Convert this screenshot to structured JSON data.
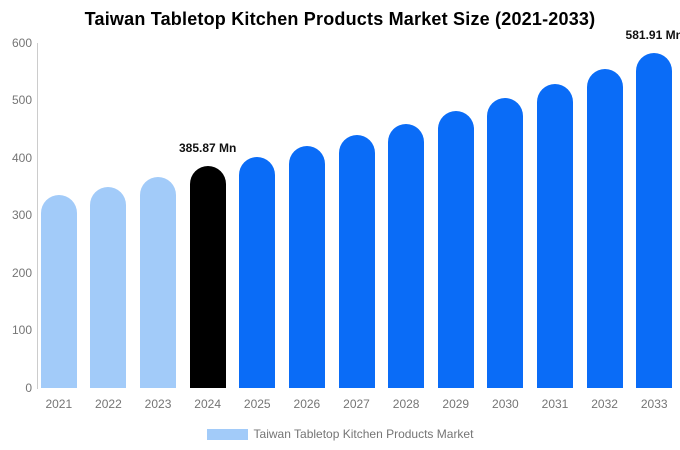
{
  "title": "Taiwan Tabletop Kitchen Products Market Size (2021-2033)",
  "colors": {
    "background": "#ffffff",
    "light_blue": "#a2cbf9",
    "highlight_black": "#000000",
    "blue": "#0a6cf7",
    "axis_line": "#cccccc",
    "tick_text": "#757575",
    "legend_text": "#757575",
    "title_text": "#000000",
    "value_label_text": "#111111"
  },
  "chart_data": {
    "type": "bar",
    "title": "Taiwan Tabletop Kitchen Products Market Size (2021-2033)",
    "unit": "Mn",
    "categories": [
      "2021",
      "2022",
      "2023",
      "2024",
      "2025",
      "2026",
      "2027",
      "2028",
      "2029",
      "2030",
      "2031",
      "2032",
      "2033"
    ],
    "values": [
      335,
      349,
      367,
      385.87,
      402,
      421,
      440,
      460,
      481,
      504,
      528,
      554,
      581.91
    ],
    "bar_colors": [
      "#a2cbf9",
      "#a2cbf9",
      "#a2cbf9",
      "#000000",
      "#0a6cf7",
      "#0a6cf7",
      "#0a6cf7",
      "#0a6cf7",
      "#0a6cf7",
      "#0a6cf7",
      "#0a6cf7",
      "#0a6cf7",
      "#0a6cf7"
    ],
    "xlabel": "",
    "ylabel": "",
    "ylim": [
      0,
      600
    ],
    "yticks": [
      0,
      100,
      200,
      300,
      400,
      500,
      600
    ],
    "grid": false,
    "annotations": [
      {
        "category": "2024",
        "index": 3,
        "text": "385.87 Mn"
      },
      {
        "category": "2033",
        "index": 12,
        "text": "581.91 Mn"
      }
    ],
    "legend": {
      "position": "bottom",
      "label": "Taiwan Tabletop Kitchen Products Market"
    }
  }
}
